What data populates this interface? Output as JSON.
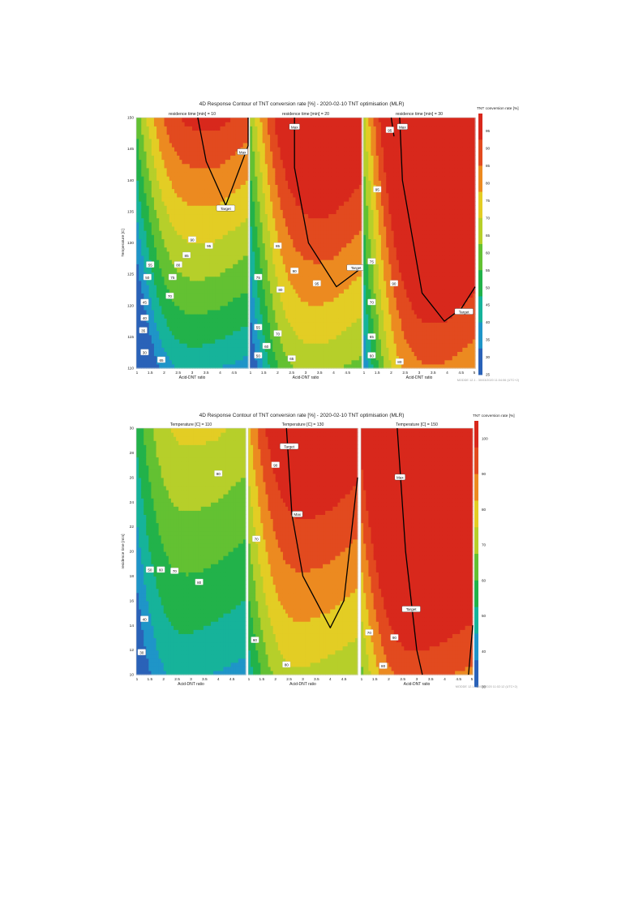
{
  "colors": {
    "scale": [
      "#2a62b8",
      "#1f95c8",
      "#16b39a",
      "#22b24a",
      "#63c132",
      "#b6cf2a",
      "#e3cd24",
      "#ec8a20",
      "#e24a1f",
      "#d8281c"
    ],
    "contour": "#000000",
    "text": "#222222",
    "footer": "#9a9a9a"
  },
  "chart_data": [
    {
      "type": "heatmap",
      "title": "4D Response Contour of TNT conversion rate [%] - 2020-02-10 TNT optimisation (MLR)",
      "xlabel": "Acid-DNT ratio",
      "ylabel": "Temperature [C]",
      "xlim": [
        1,
        5
      ],
      "ylim": [
        110,
        150
      ],
      "grid": false,
      "legend": {
        "title": "TNT conversion rate [%]",
        "position": "right",
        "min": 25,
        "max": 100,
        "ticks": [
          "95",
          "90",
          "85",
          "80",
          "75",
          "70",
          "65",
          "60",
          "55",
          "50",
          "45",
          "40",
          "35",
          "30",
          "25"
        ]
      },
      "footer": "MODDE 12.1 - 30/03/2020 11:04:06 (UTC+2)",
      "panels": [
        {
          "subtitle": "residence time [min] = 10",
          "xticks": [
            "1",
            "1.5",
            "2",
            "2.5",
            "3",
            "3.5",
            "4",
            "4.5"
          ],
          "yticks": [
            "150",
            "145",
            "140",
            "135",
            "130",
            "125",
            "120",
            "115",
            "110"
          ],
          "model": {
            "base": 15,
            "a": 55,
            "b": -6.5,
            "g": 1.45
          },
          "labels": [
            {
              "text": "Max",
              "x": 4.8,
              "y": 144.5,
              "boxed": true
            },
            {
              "text": "Target",
              "x": 4.2,
              "y": 135.5,
              "boxed": true
            },
            {
              "text": "95",
              "x": 3.6,
              "y": 129.5
            },
            {
              "text": "90",
              "x": 3.0,
              "y": 130.5
            },
            {
              "text": "85",
              "x": 2.8,
              "y": 128.0
            },
            {
              "text": "80",
              "x": 2.5,
              "y": 126.5
            },
            {
              "text": "75",
              "x": 2.3,
              "y": 124.5
            },
            {
              "text": "70",
              "x": 2.2,
              "y": 121.5
            },
            {
              "text": "65",
              "x": 1.9,
              "y": 111.3
            },
            {
              "text": "55",
              "x": 1.5,
              "y": 126.5
            },
            {
              "text": "50",
              "x": 1.4,
              "y": 124.5
            },
            {
              "text": "45",
              "x": 1.3,
              "y": 120.5
            },
            {
              "text": "40",
              "x": 1.3,
              "y": 118.0
            },
            {
              "text": "35",
              "x": 1.25,
              "y": 116.0
            },
            {
              "text": "30",
              "x": 1.3,
              "y": 112.5
            }
          ],
          "contours": [
            {
              "label": "Max",
              "level": 95,
              "yOf": [
                [
                  5,
                  150
                ],
                [
                  5,
                  145.5
                ],
                [
                  4.2,
                  136.0
                ],
                [
                  3.5,
                  143
                ],
                [
                  3.2,
                  150
                ]
              ]
            }
          ]
        },
        {
          "subtitle": "residence time [min] = 20",
          "xticks": [
            "1",
            "1.5",
            "2",
            "2.5",
            "3",
            "3.5",
            "4",
            "4.5"
          ],
          "yticks": [],
          "model": {
            "base": 28,
            "a": 45,
            "b": -6.0,
            "g": 1.8
          },
          "labels": [
            {
              "text": "Max",
              "x": 2.6,
              "y": 148.5,
              "boxed": true
            },
            {
              "text": "Target",
              "x": 4.8,
              "y": 126.0,
              "boxed": true
            },
            {
              "text": "95",
              "x": 3.4,
              "y": 123.5
            },
            {
              "text": "90",
              "x": 2.6,
              "y": 125.5
            },
            {
              "text": "85",
              "x": 2.0,
              "y": 129.5
            },
            {
              "text": "80",
              "x": 2.1,
              "y": 122.5
            },
            {
              "text": "75",
              "x": 1.3,
              "y": 124.5
            },
            {
              "text": "70",
              "x": 2.0,
              "y": 115.5
            },
            {
              "text": "65",
              "x": 2.5,
              "y": 111.5
            },
            {
              "text": "60",
              "x": 1.6,
              "y": 113.5
            },
            {
              "text": "55",
              "x": 1.3,
              "y": 116.5
            },
            {
              "text": "50",
              "x": 1.3,
              "y": 112.0
            }
          ],
          "contours": [
            {
              "label": "Target",
              "level": 95,
              "yOf": [
                [
                  5,
                  126
                ],
                [
                  4.1,
                  123
                ],
                [
                  3.1,
                  130
                ],
                [
                  2.6,
                  142
                ],
                [
                  2.6,
                  150
                ]
              ]
            }
          ]
        },
        {
          "subtitle": "residence time [min] = 30",
          "xticks": [
            "1",
            "1.5",
            "2",
            "2.5",
            "3",
            "3.5",
            "4",
            "4.5",
            "5"
          ],
          "yticks": [],
          "model": {
            "base": 38,
            "a": 40,
            "b": -5.5,
            "g": 2.1
          },
          "labels": [
            {
              "text": "Max",
              "x": 2.4,
              "y": 148.5,
              "boxed": true
            },
            {
              "text": "Target",
              "x": 4.6,
              "y": 119.0,
              "boxed": true
            },
            {
              "text": "95",
              "x": 1.95,
              "y": 148.0
            },
            {
              "text": "95",
              "x": 1.5,
              "y": 138.5
            },
            {
              "text": "90",
              "x": 2.1,
              "y": 123.5
            },
            {
              "text": "75",
              "x": 1.3,
              "y": 127.0
            },
            {
              "text": "70",
              "x": 1.3,
              "y": 120.5
            },
            {
              "text": "65",
              "x": 1.3,
              "y": 115.0
            },
            {
              "text": "60",
              "x": 1.3,
              "y": 112.0
            },
            {
              "text": "80",
              "x": 2.3,
              "y": 111.0
            }
          ],
          "contours": [
            {
              "label": "Target",
              "level": 95,
              "yOf": [
                [
                  5,
                  123
                ],
                [
                  4.5,
                  119.5
                ],
                [
                  3.9,
                  117.5
                ],
                [
                  3.1,
                  122
                ],
                [
                  2.4,
                  140
                ],
                [
                  2.3,
                  150
                ]
              ]
            },
            {
              "label": "Max",
              "level": 99,
              "yOf": [
                [
                  2.0,
                  150
                ],
                [
                  2.1,
                  147
                ]
              ]
            }
          ]
        }
      ]
    },
    {
      "type": "heatmap",
      "title": "4D Response Contour of TNT conversion rate [%] - 2020-02-10 TNT optimisation (MLR)",
      "xlabel": "Acid-DNT ratio",
      "ylabel": "residence time [min]",
      "xlim": [
        1,
        5
      ],
      "ylim": [
        10,
        30
      ],
      "grid": false,
      "legend": {
        "title": "TNT conversion rate [%]",
        "position": "right",
        "min": 30,
        "max": 105,
        "ticks": [
          "100",
          "90",
          "80",
          "70",
          "60",
          "50",
          "40",
          "30"
        ]
      },
      "footer": "MODDE 12.1 - 30/03/2020 11:02:12 (UTC+2)",
      "panels": [
        {
          "subtitle": "Temperature [C] = 110",
          "xticks": [
            "1",
            "1.5",
            "2",
            "2.5",
            "3",
            "3.5",
            "4",
            "4.5"
          ],
          "yticks": [
            "30",
            "28",
            "26",
            "24",
            "22",
            "20",
            "18",
            "16",
            "14",
            "12",
            "10"
          ],
          "model": {
            "base": 30,
            "a": 32,
            "b": -4.2,
            "g": 1.05
          },
          "labels": [
            {
              "text": "90",
              "x": 4.0,
              "y": 26.3
            },
            {
              "text": "80",
              "x": 3.3,
              "y": 17.5
            },
            {
              "text": "70",
              "x": 2.4,
              "y": 18.4
            },
            {
              "text": "60",
              "x": 1.9,
              "y": 18.5
            },
            {
              "text": "50",
              "x": 1.5,
              "y": 18.5
            },
            {
              "text": "40",
              "x": 1.3,
              "y": 14.5
            },
            {
              "text": "30",
              "x": 1.2,
              "y": 11.8
            }
          ],
          "contours": []
        },
        {
          "subtitle": "Temperature [C] = 130",
          "xticks": [
            "1",
            "1.5",
            "2",
            "2.5",
            "3",
            "3.5",
            "4",
            "4.5"
          ],
          "yticks": [],
          "model": {
            "base": 52,
            "a": 38,
            "b": -5.0,
            "g": 1.25
          },
          "labels": [
            {
              "text": "Target",
              "x": 2.5,
              "y": 28.5,
              "boxed": true
            },
            {
              "text": "Max",
              "x": 2.8,
              "y": 23.0,
              "boxed": true
            },
            {
              "text": "90",
              "x": 2.0,
              "y": 27.0
            },
            {
              "text": "70",
              "x": 1.3,
              "y": 21.0
            },
            {
              "text": "60",
              "x": 1.25,
              "y": 12.8
            },
            {
              "text": "80",
              "x": 2.4,
              "y": 10.8
            }
          ],
          "contours": [
            {
              "label": "Target",
              "level": 99,
              "yOf": [
                [
                  2.4,
                  30
                ],
                [
                  2.6,
                  23
                ],
                [
                  3.0,
                  18
                ],
                [
                  4.0,
                  13.8
                ],
                [
                  4.5,
                  16
                ],
                [
                  5,
                  26
                ]
              ]
            }
          ]
        },
        {
          "subtitle": "Temperature [C] = 150",
          "xticks": [
            "1",
            "1.5",
            "2",
            "2.5",
            "3",
            "3.5",
            "4",
            "4.5",
            "5"
          ],
          "yticks": [],
          "model": {
            "base": 70,
            "a": 42,
            "b": -5.6,
            "g": 1.3
          },
          "labels": [
            {
              "text": "Max",
              "x": 2.4,
              "y": 26.0,
              "boxed": true
            },
            {
              "text": "Target",
              "x": 2.8,
              "y": 15.3,
              "boxed": true
            },
            {
              "text": "90",
              "x": 2.2,
              "y": 13.0
            },
            {
              "text": "70",
              "x": 1.3,
              "y": 13.4
            },
            {
              "text": "80",
              "x": 1.8,
              "y": 10.7
            }
          ],
          "contours": [
            {
              "label": "Target",
              "level": 99,
              "yOf": [
                [
                  2.3,
                  30
                ],
                [
                  2.6,
                  20
                ],
                [
                  3.0,
                  12
                ],
                [
                  3.2,
                  10
                ]
              ]
            },
            {
              "label": "Max",
              "level": 99,
              "yOf": [
                [
                  5,
                  14
                ],
                [
                  4.85,
                  10
                ]
              ]
            }
          ]
        }
      ]
    }
  ]
}
